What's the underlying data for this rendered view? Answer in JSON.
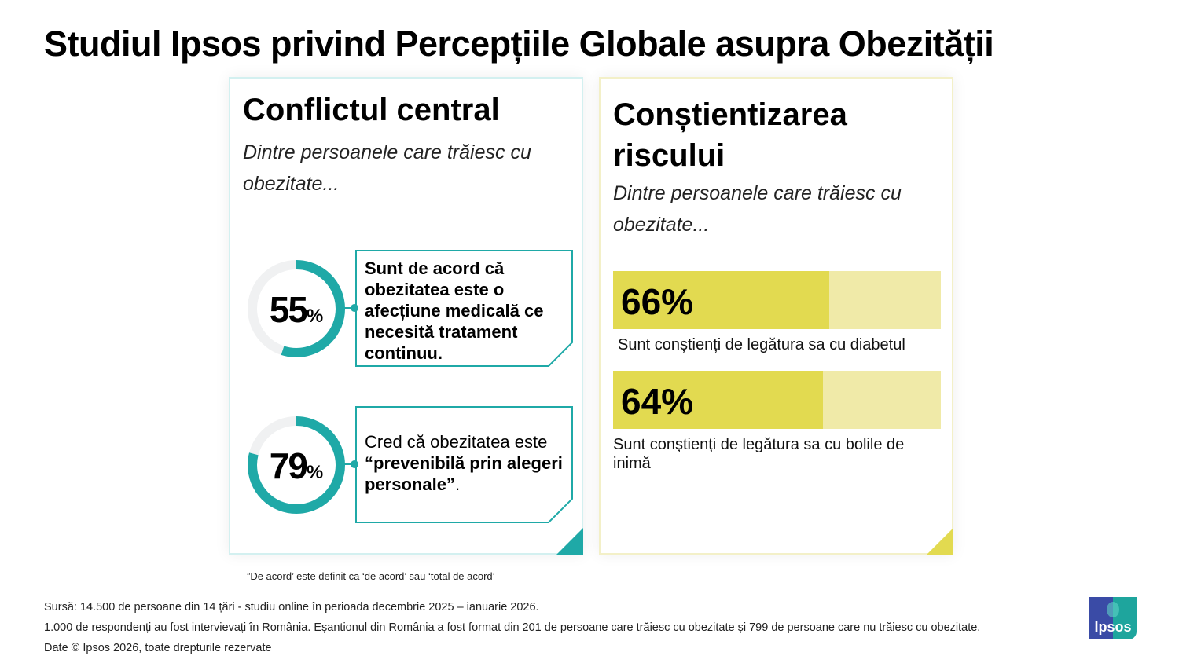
{
  "title": "Studiul Ipsos privind Percepțiile Globale asupra Obezității",
  "left_card": {
    "title": "Conflictul central",
    "subtitle": "Dintre persoanele care trăiesc cu obezitate...",
    "stats": [
      {
        "value": 55,
        "value_label": "55",
        "unit": "%",
        "text_bold": "Sunt de acord că obezitatea este o afecțiune medicală ce necesită tratament continuu."
      },
      {
        "value": 79,
        "value_label": "79",
        "unit": "%",
        "text_pre": "Cred că obezitatea este ",
        "text_bold": "“prevenibilă prin alegeri personale”",
        "text_post": "."
      }
    ],
    "color": "#1fa9a7"
  },
  "right_card": {
    "title": "Conștientizarea riscului",
    "subtitle": "Dintre persoanele care trăiesc cu obezitate...",
    "bars": [
      {
        "value": 66,
        "value_label": "66%",
        "label": "Sunt conștienți de legătura sa cu diabetul"
      },
      {
        "value": 64,
        "value_label": "64%",
        "label": "Sunt conștienți de legătura sa cu bolile de inimă"
      }
    ],
    "color": "#e2da50",
    "track_color": "#f0eaa8"
  },
  "note": "”De acord’ este definit ca ‘de acord’ sau ‘total de acord’",
  "footer": [
    "Sursă: 14.500 de persoane din 14 țări - studiu online în perioada decembrie 2025 – ianuarie 2026.",
    "1.000 de respondenți au fost intervievați în România. Eșantionul din România a fost format din 201 de persoane care trăiesc cu obezitate și 799 de persoane care nu trăiesc cu obezitate.",
    "Date © Ipsos 2026, toate drepturile rezervate"
  ],
  "logo": "Ipsos"
}
